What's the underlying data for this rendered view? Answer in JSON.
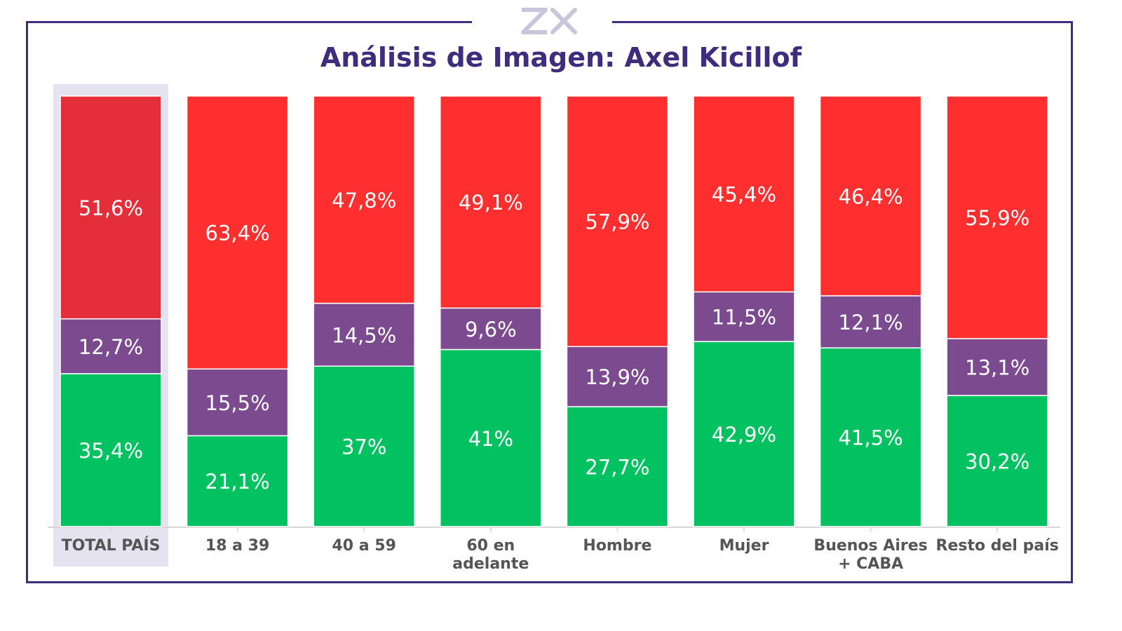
{
  "header": {
    "logo_text": "ZX",
    "title": "Análisis de Imagen: Axel Kicillof"
  },
  "colors": {
    "frame": "#3d2d7c",
    "red": "#ff2f2f",
    "red_total": "#e42f3a",
    "purple": "#7b4a8f",
    "green": "#02c160",
    "highlight": "#e4e3ef",
    "logo": "#c9c5dc"
  },
  "chart_data": {
    "type": "bar",
    "stacked": true,
    "percent_stacked": true,
    "categories": [
      "TOTAL PAÍS",
      "18 a 39",
      "40 a 59",
      "60 en adelante",
      "Hombre",
      "Mujer",
      "Buenos Aires + CABA",
      "Resto del país"
    ],
    "category_lines": [
      [
        "TOTAL PAÍS"
      ],
      [
        "18 a 39"
      ],
      [
        "40 a 59"
      ],
      [
        "60 en",
        "adelante"
      ],
      [
        "Hombre"
      ],
      [
        "Mujer"
      ],
      [
        "Buenos Aires",
        "+ CABA"
      ],
      [
        "Resto del país"
      ]
    ],
    "highlighted_category": "TOTAL PAÍS",
    "series": [
      {
        "color": "#02c160",
        "values": [
          35.4,
          21.1,
          37,
          41,
          27.7,
          42.9,
          41.5,
          30.2
        ],
        "labels": [
          "35,4%",
          "21,1%",
          "37%",
          "41%",
          "27,7%",
          "42,9%",
          "41,5%",
          "30,2%"
        ]
      },
      {
        "color": "#7b4a8f",
        "values": [
          12.7,
          15.5,
          14.5,
          9.6,
          13.9,
          11.5,
          12.1,
          13.1
        ],
        "labels": [
          "12,7%",
          "15,5%",
          "14,5%",
          "9,6%",
          "13,9%",
          "11,5%",
          "12,1%",
          "13,1%"
        ]
      },
      {
        "color": "#ff2f2f",
        "values": [
          51.6,
          63.4,
          47.8,
          49.1,
          57.9,
          45.4,
          46.4,
          55.9
        ],
        "labels": [
          "51,6%",
          "63,4%",
          "47,8%",
          "49,1%",
          "57,9%",
          "45,4%",
          "46,4%",
          "55,9%"
        ]
      }
    ],
    "ylim": [
      0,
      100
    ],
    "legend": "none",
    "grid": false
  }
}
